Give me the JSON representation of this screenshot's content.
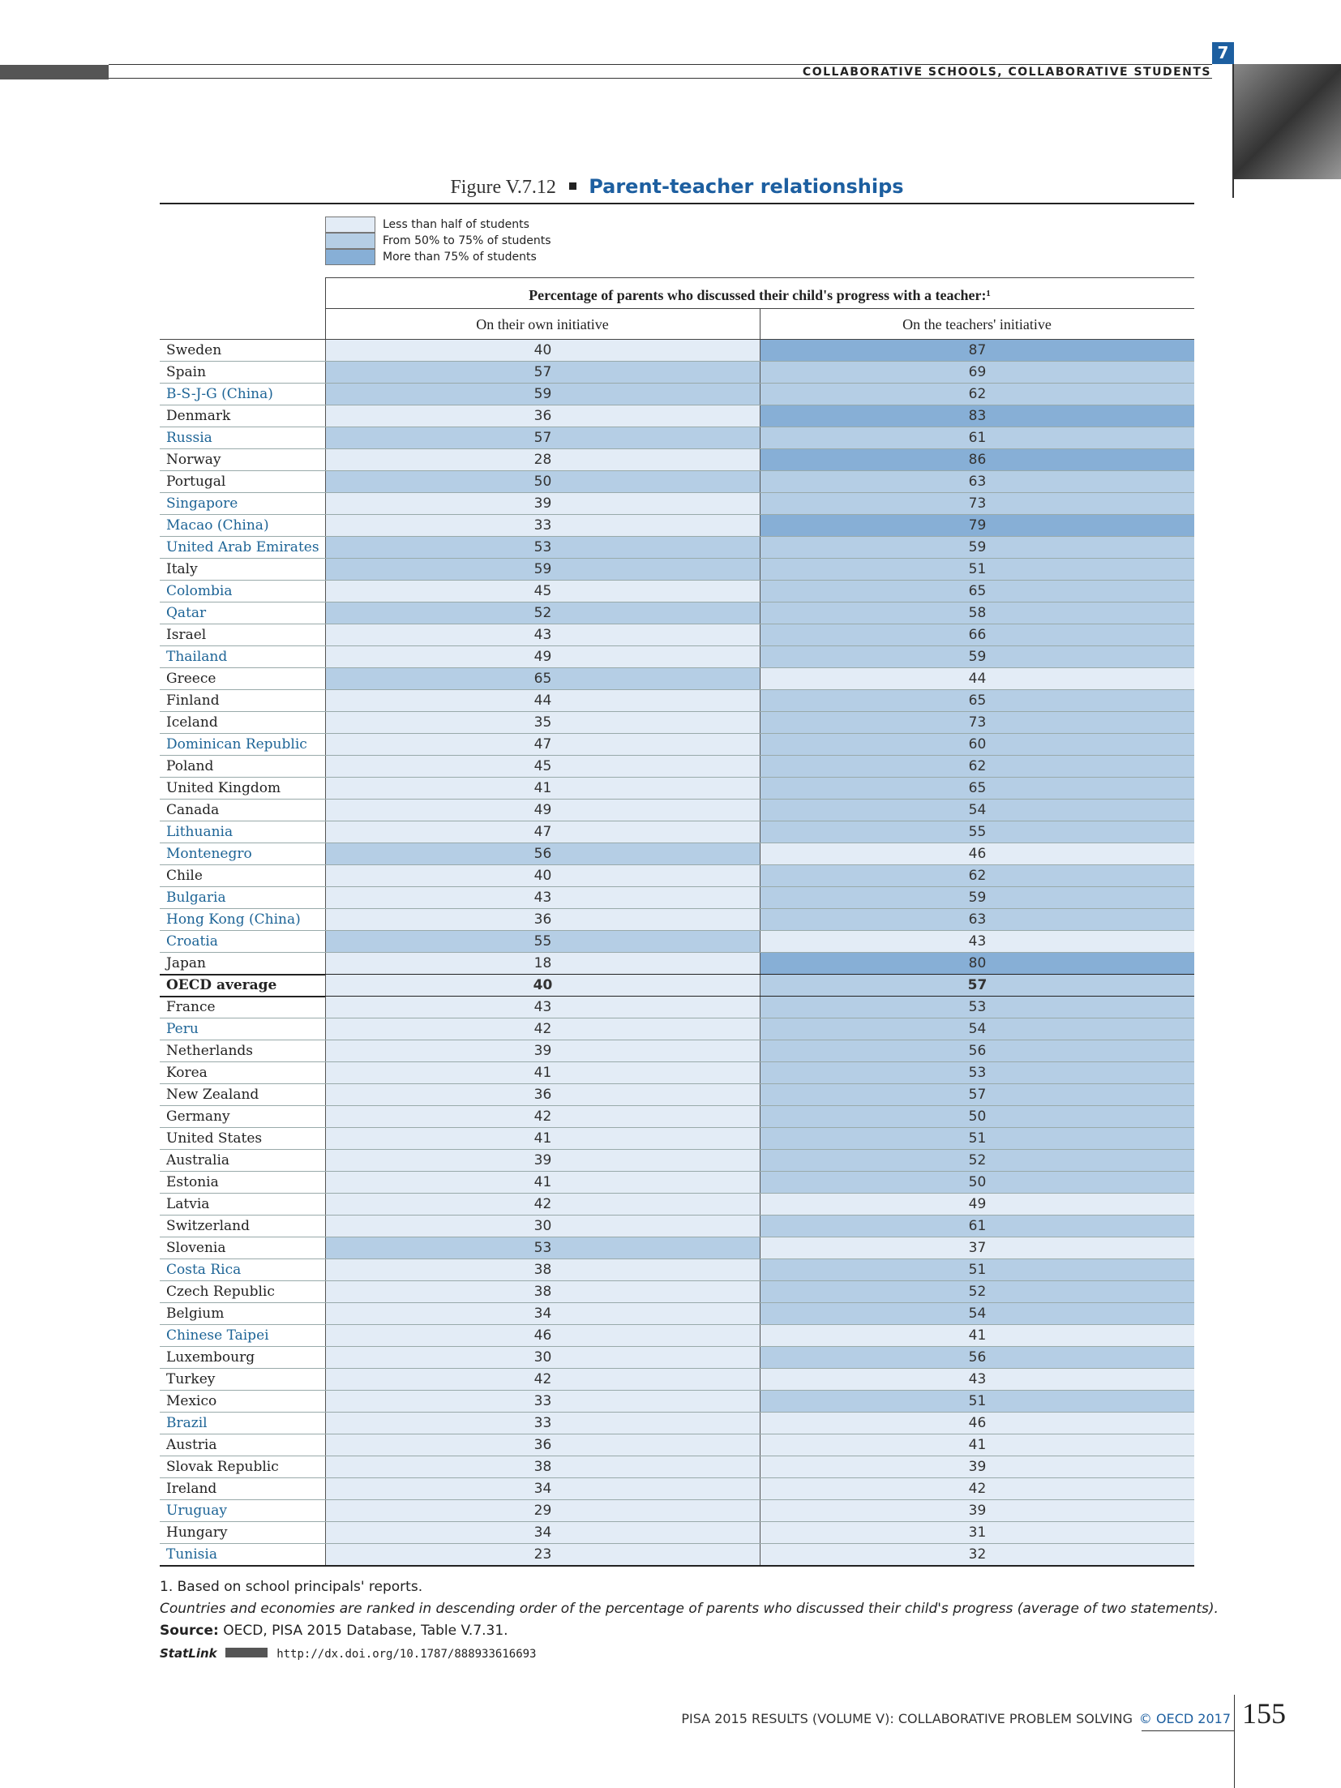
{
  "header": {
    "section": "COLLABORATIVE SCHOOLS, COLLABORATIVE STUDENTS",
    "chapter": "7"
  },
  "figure": {
    "label": "Figure V.7.12",
    "title": "Parent-teacher relationships"
  },
  "legend": [
    {
      "label": "Less than half of students",
      "color": "#e3ecf6"
    },
    {
      "label": "From 50% to 75% of students",
      "color": "#b5cee5"
    },
    {
      "label": "More than 75% of students",
      "color": "#87afd6"
    }
  ],
  "table": {
    "supertitle": "Percentage of parents who discussed their child's progress with a teacher:¹",
    "columns": [
      "On their own initiative",
      "On the teachers' initiative"
    ],
    "partner_color": "#1d6496",
    "rows": [
      {
        "country": "Sweden",
        "own": 40,
        "teacher": 87
      },
      {
        "country": "Spain",
        "own": 57,
        "teacher": 69
      },
      {
        "country": "B-S-J-G (China)",
        "own": 59,
        "teacher": 62,
        "partner": true
      },
      {
        "country": "Denmark",
        "own": 36,
        "teacher": 83
      },
      {
        "country": "Russia",
        "own": 57,
        "teacher": 61,
        "partner": true
      },
      {
        "country": "Norway",
        "own": 28,
        "teacher": 86
      },
      {
        "country": "Portugal",
        "own": 50,
        "teacher": 63
      },
      {
        "country": "Singapore",
        "own": 39,
        "teacher": 73,
        "partner": true
      },
      {
        "country": "Macao (China)",
        "own": 33,
        "teacher": 79,
        "partner": true
      },
      {
        "country": "United Arab Emirates",
        "own": 53,
        "teacher": 59,
        "partner": true
      },
      {
        "country": "Italy",
        "own": 59,
        "teacher": 51
      },
      {
        "country": "Colombia",
        "own": 45,
        "teacher": 65,
        "partner": true
      },
      {
        "country": "Qatar",
        "own": 52,
        "teacher": 58,
        "partner": true
      },
      {
        "country": "Israel",
        "own": 43,
        "teacher": 66
      },
      {
        "country": "Thailand",
        "own": 49,
        "teacher": 59,
        "partner": true
      },
      {
        "country": "Greece",
        "own": 65,
        "teacher": 44
      },
      {
        "country": "Finland",
        "own": 44,
        "teacher": 65
      },
      {
        "country": "Iceland",
        "own": 35,
        "teacher": 73
      },
      {
        "country": "Dominican Republic",
        "own": 47,
        "teacher": 60,
        "partner": true
      },
      {
        "country": "Poland",
        "own": 45,
        "teacher": 62
      },
      {
        "country": "United Kingdom",
        "own": 41,
        "teacher": 65
      },
      {
        "country": "Canada",
        "own": 49,
        "teacher": 54
      },
      {
        "country": "Lithuania",
        "own": 47,
        "teacher": 55,
        "partner": true
      },
      {
        "country": "Montenegro",
        "own": 56,
        "teacher": 46,
        "partner": true
      },
      {
        "country": "Chile",
        "own": 40,
        "teacher": 62
      },
      {
        "country": "Bulgaria",
        "own": 43,
        "teacher": 59,
        "partner": true
      },
      {
        "country": "Hong Kong (China)",
        "own": 36,
        "teacher": 63,
        "partner": true
      },
      {
        "country": "Croatia",
        "own": 55,
        "teacher": 43,
        "partner": true
      },
      {
        "country": "Japan",
        "own": 18,
        "teacher": 80
      },
      {
        "country": "OECD average",
        "own": 40,
        "teacher": 57,
        "bold": true
      },
      {
        "country": "France",
        "own": 43,
        "teacher": 53
      },
      {
        "country": "Peru",
        "own": 42,
        "teacher": 54,
        "partner": true
      },
      {
        "country": "Netherlands",
        "own": 39,
        "teacher": 56
      },
      {
        "country": "Korea",
        "own": 41,
        "teacher": 53
      },
      {
        "country": "New Zealand",
        "own": 36,
        "teacher": 57
      },
      {
        "country": "Germany",
        "own": 42,
        "teacher": 50
      },
      {
        "country": "United States",
        "own": 41,
        "teacher": 51
      },
      {
        "country": "Australia",
        "own": 39,
        "teacher": 52
      },
      {
        "country": "Estonia",
        "own": 41,
        "teacher": 50
      },
      {
        "country": "Latvia",
        "own": 42,
        "teacher": 49
      },
      {
        "country": "Switzerland",
        "own": 30,
        "teacher": 61
      },
      {
        "country": "Slovenia",
        "own": 53,
        "teacher": 37
      },
      {
        "country": "Costa Rica",
        "own": 38,
        "teacher": 51,
        "partner": true
      },
      {
        "country": "Czech Republic",
        "own": 38,
        "teacher": 52
      },
      {
        "country": "Belgium",
        "own": 34,
        "teacher": 54
      },
      {
        "country": "Chinese Taipei",
        "own": 46,
        "teacher": 41,
        "partner": true
      },
      {
        "country": "Luxembourg",
        "own": 30,
        "teacher": 56
      },
      {
        "country": "Turkey",
        "own": 42,
        "teacher": 43
      },
      {
        "country": "Mexico",
        "own": 33,
        "teacher": 51
      },
      {
        "country": "Brazil",
        "own": 33,
        "teacher": 46,
        "partner": true
      },
      {
        "country": "Austria",
        "own": 36,
        "teacher": 41
      },
      {
        "country": "Slovak Republic",
        "own": 38,
        "teacher": 39
      },
      {
        "country": "Ireland",
        "own": 34,
        "teacher": 42
      },
      {
        "country": "Uruguay",
        "own": 29,
        "teacher": 39,
        "partner": true
      },
      {
        "country": "Hungary",
        "own": 34,
        "teacher": 31
      },
      {
        "country": "Tunisia",
        "own": 23,
        "teacher": 32,
        "partner": true
      }
    ]
  },
  "notes": [
    "1. Based on school principals' reports.",
    "Countries and economies are ranked in descending order of the percentage of parents who discussed their child's progress (average of two statements)."
  ],
  "source": {
    "label": "Source:",
    "text": "OECD, PISA 2015 Database, Table V.7.31."
  },
  "statlink": {
    "label": "StatLink",
    "url": "http://dx.doi.org/10.1787/888933616693"
  },
  "footer": {
    "publication": "PISA 2015 RESULTS (VOLUME V): COLLABORATIVE PROBLEM SOLVING",
    "copyright": "© OECD 2017",
    "page": "155"
  }
}
